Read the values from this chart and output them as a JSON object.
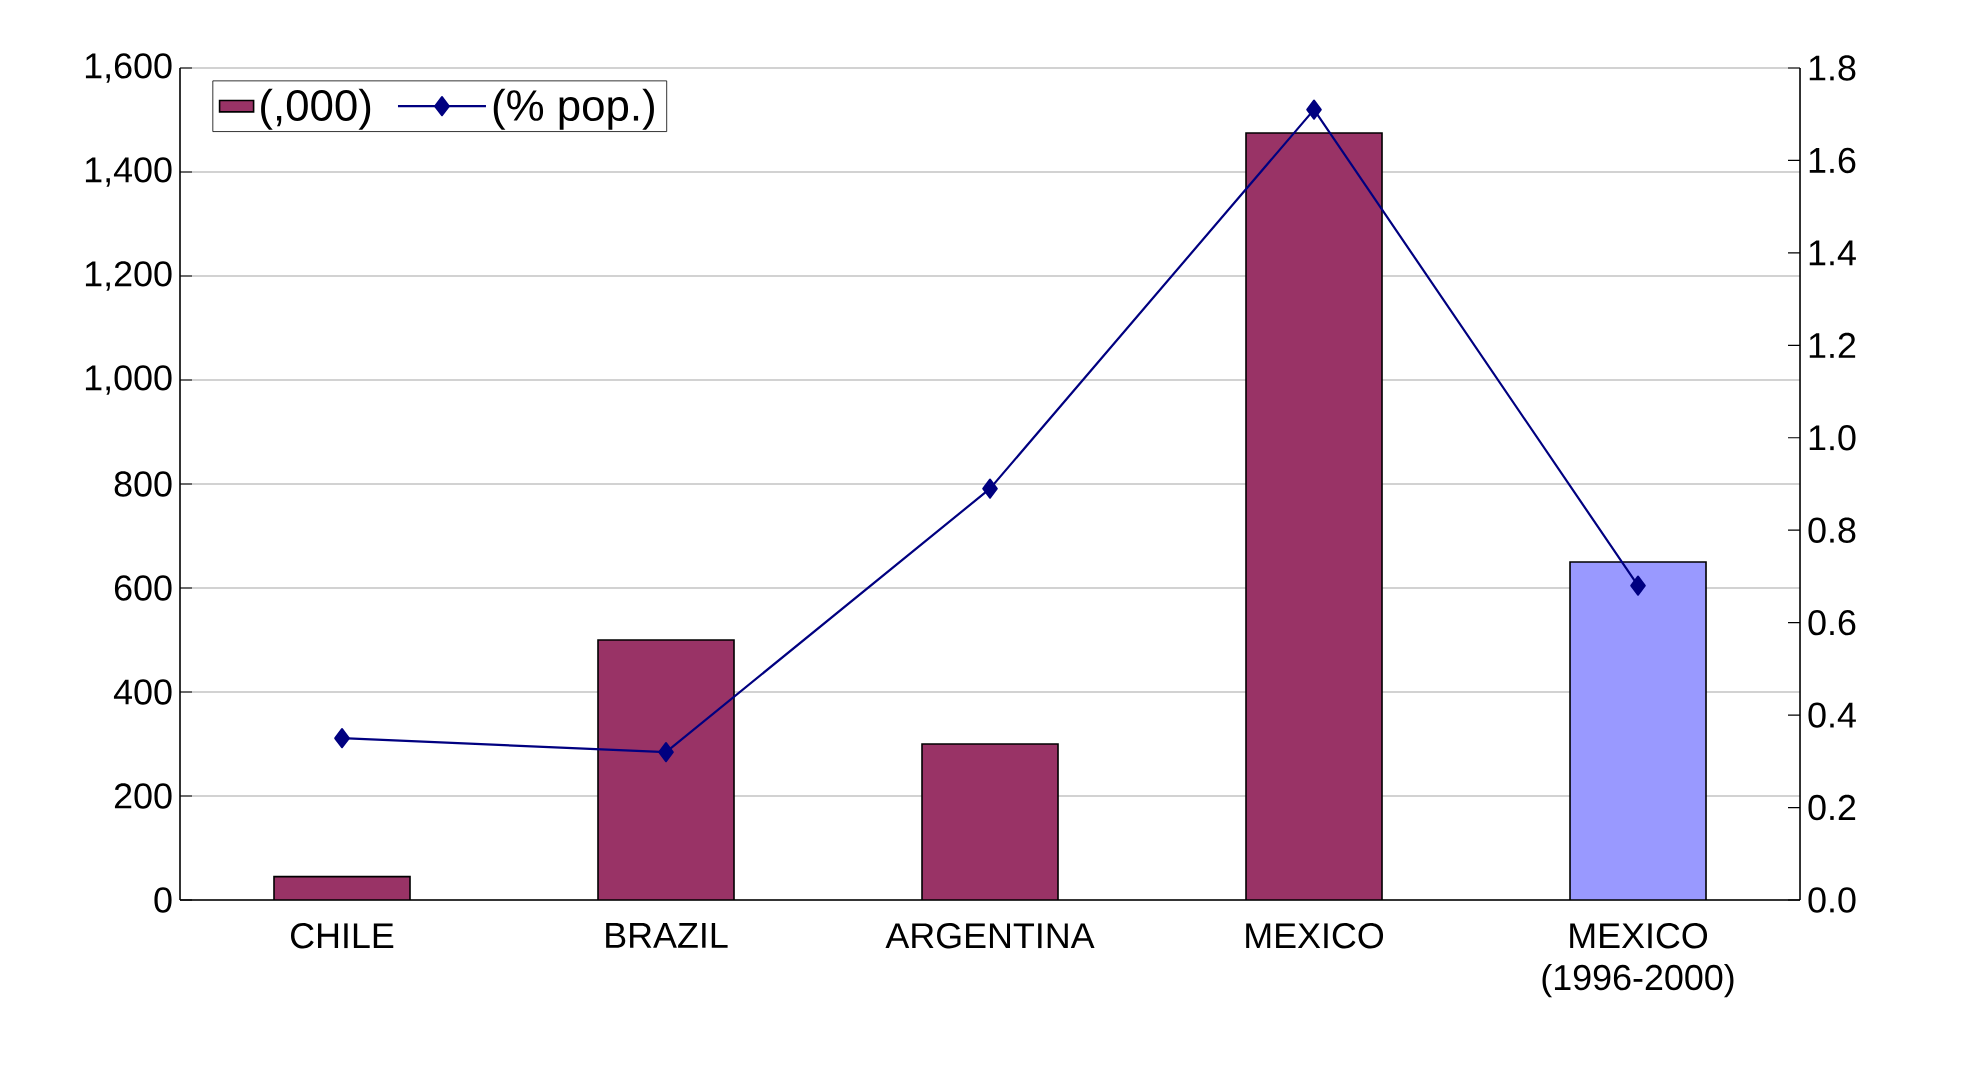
{
  "chart_data": {
    "type": "bar",
    "categories": [
      "CHILE",
      "BRAZIL",
      "ARGENTINA",
      "MEXICO",
      "MEXICO (1996-2000)"
    ],
    "series": [
      {
        "name": "(,000)",
        "colors": [
          "#993366",
          "#993366",
          "#993366",
          "#993366",
          "#9999ff"
        ],
        "values": [
          45,
          500,
          300,
          1475,
          650
        ]
      },
      {
        "name": "(% pop.)",
        "type": "line",
        "axis": "y2",
        "color": "#000080",
        "marker": "diamond",
        "values": [
          0.35,
          0.32,
          0.89,
          1.71,
          0.68
        ]
      }
    ],
    "ylim": [
      0,
      1600
    ],
    "yticks": [
      {
        "value": 0,
        "label": "0"
      },
      {
        "value": 200,
        "label": "200"
      },
      {
        "value": 400,
        "label": "400"
      },
      {
        "value": 600,
        "label": "600"
      },
      {
        "value": 800,
        "label": "800"
      },
      {
        "value": 1000,
        "label": "1,000"
      },
      {
        "value": 1200,
        "label": "1,200"
      },
      {
        "value": 1400,
        "label": "1,400"
      },
      {
        "value": 1600,
        "label": "1,600"
      }
    ],
    "y2lim": [
      0,
      1.8
    ],
    "y2ticks": [
      {
        "value": 0,
        "label": "0.0"
      },
      {
        "value": 0.2,
        "label": "0.2"
      },
      {
        "value": 0.4,
        "label": "0.4"
      },
      {
        "value": 0.6,
        "label": "0.6"
      },
      {
        "value": 0.8,
        "label": "0.8"
      },
      {
        "value": 1.0,
        "label": "1.0"
      },
      {
        "value": 1.2,
        "label": "1.2"
      },
      {
        "value": 1.4,
        "label": "1.4"
      },
      {
        "value": 1.6,
        "label": "1.6"
      },
      {
        "value": 1.8,
        "label": "1.8"
      }
    ],
    "grid": "y",
    "legend": "top left"
  }
}
